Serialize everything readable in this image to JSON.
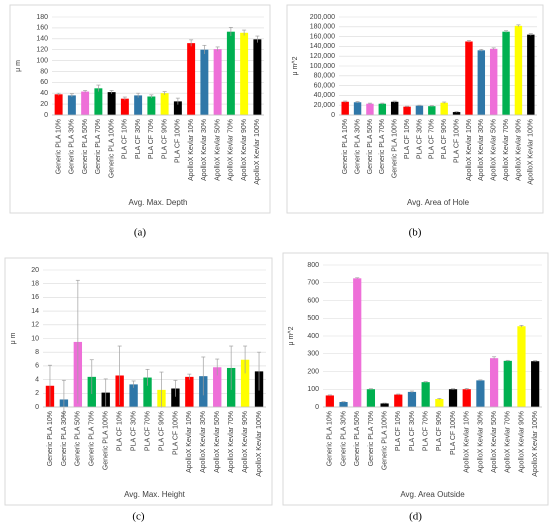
{
  "chart_data": [
    {
      "type": "bar",
      "label": "(a)",
      "title": "Avg. Max. Depth",
      "ylabel": "μ m",
      "categories": [
        "Generic PLA 10%",
        "Generic PLA 30%",
        "Generic PLA 50%",
        "Generic PLA 70%",
        "Generic PLA 100%",
        "PLA CF 10%",
        "PLA CF 30%",
        "PLA CF 70%",
        "PLA CF 90%",
        "PLA CF 100%",
        "ApolloX Kevlar 10%",
        "ApolloX Kevlar 30%",
        "ApolloX Kevlar 50%",
        "ApolloX Kevlar 70%",
        "ApolloX Kevlar 90%",
        "ApolloX Kevlar 100%"
      ],
      "values": [
        38,
        36,
        43,
        49,
        42,
        30,
        36,
        34,
        40,
        25,
        132,
        120,
        121,
        153,
        151,
        139
      ],
      "errors": [
        2,
        3,
        2,
        6,
        3,
        3,
        4,
        3,
        3,
        6,
        6,
        8,
        4,
        8,
        5,
        6
      ],
      "colors": [
        "#ff0000",
        "#2f77a8",
        "#ee6fd8",
        "#00b050",
        "#000000",
        "#ff0000",
        "#2f77a8",
        "#00b050",
        "#ffff00",
        "#000000",
        "#ff0000",
        "#2f77a8",
        "#ee6fd8",
        "#00b050",
        "#ffff00",
        "#000000"
      ],
      "ylim": [
        0,
        180
      ],
      "yticks": [
        0,
        20,
        40,
        60,
        80,
        100,
        120,
        140,
        160,
        180
      ],
      "grid": true
    },
    {
      "type": "bar",
      "label": "(b)",
      "title": "Avg. Area of Hole",
      "ylabel": "μ m^2",
      "categories": [
        "Generic PLA 10%",
        "Generic PLA 30%",
        "Generic PLA 50%",
        "Generic PLA 70%",
        "Generic PLA 100%",
        "PLA CF 10%",
        "PLA CF 30%",
        "PLA CF 70%",
        "PLA CF 90%",
        "PLA CF 100%",
        "ApolloX Kevlar 10%",
        "ApolloX Kevlar 30%",
        "ApolloX Kevlar 50%",
        "ApolloX Kevlar 70%",
        "ApolloX Kevlar 90%",
        "ApolloX Kevlar 100%"
      ],
      "values": [
        27000,
        26000,
        23000,
        23000,
        27000,
        17000,
        19000,
        18000,
        25000,
        6000,
        150000,
        132000,
        135000,
        170000,
        182000,
        164000
      ],
      "errors": [
        1500,
        1500,
        1200,
        1200,
        1500,
        1000,
        1000,
        1000,
        1500,
        800,
        2000,
        2000,
        2000,
        2000,
        2000,
        2000
      ],
      "colors": [
        "#ff0000",
        "#2f77a8",
        "#ee6fd8",
        "#00b050",
        "#000000",
        "#ff0000",
        "#2f77a8",
        "#00b050",
        "#ffff00",
        "#000000",
        "#ff0000",
        "#2f77a8",
        "#ee6fd8",
        "#00b050",
        "#ffff00",
        "#000000"
      ],
      "ylim": [
        0,
        200000
      ],
      "yticks": [
        0,
        {
          "value": 20000,
          "label": "20,000"
        },
        {
          "value": 40000,
          "label": "40,000"
        },
        {
          "value": 60000,
          "label": "60,000"
        },
        {
          "value": 80000,
          "label": "80,000"
        },
        {
          "value": 100000,
          "label": "100,000"
        },
        {
          "value": 120000,
          "label": "120,000"
        },
        {
          "value": 140000,
          "label": "140,000"
        },
        {
          "value": 160000,
          "label": "160,000"
        },
        {
          "value": 180000,
          "label": "180,000"
        },
        {
          "value": 200000,
          "label": "200,000"
        }
      ],
      "grid": true
    },
    {
      "type": "bar",
      "label": "(c)",
      "title": "Avg. Max. Height",
      "ylabel": "μ m",
      "categories": [
        "Generic PLA 10%",
        "Generic PLA 30%",
        "Generic PLA 50%",
        "Generic PLA 70%",
        "Generic PLA 100%",
        "PLA CF 10%",
        "PLA CF 30%",
        "PLA CF 70%",
        "PLA CF 90%",
        "PLA CF 100%",
        "ApolloX Kevlar 10%",
        "ApolloX Kevlar 30%",
        "ApolloX Kevlar 50%",
        "ApolloX Kevlar 70%",
        "ApolloX Kevlar 90%",
        "ApolloX Kevlar 100%"
      ],
      "values": [
        3.1,
        1.1,
        9.5,
        4.4,
        2.1,
        4.6,
        3.3,
        4.3,
        2.5,
        2.7,
        4.4,
        4.5,
        5.8,
        5.7,
        6.9,
        5.2
      ],
      "errors": [
        3,
        2.8,
        9,
        2.5,
        2,
        4.3,
        0.5,
        1.2,
        2.6,
        1.2,
        0.4,
        2.8,
        1.2,
        3.2,
        2,
        2.8
      ],
      "colors": [
        "#ff0000",
        "#2f77a8",
        "#ee6fd8",
        "#00b050",
        "#000000",
        "#ff0000",
        "#2f77a8",
        "#00b050",
        "#ffff00",
        "#000000",
        "#ff0000",
        "#2f77a8",
        "#ee6fd8",
        "#00b050",
        "#ffff00",
        "#000000"
      ],
      "ylim": [
        0,
        20
      ],
      "yticks": [
        0,
        2,
        4,
        6,
        8,
        10,
        12,
        14,
        16,
        18,
        20
      ],
      "grid": true
    },
    {
      "type": "bar",
      "label": "(d)",
      "title": "Avg. Area Outside",
      "ylabel": "μ m^2",
      "categories": [
        "Generic PLA 10%",
        "Generic PLA 30%",
        "Generic PLA 50%",
        "Generic PLA 70%",
        "Generic PLA 100%",
        "PLA CF 10%",
        "PLA CF 30%",
        "PLA CF 70%",
        "PLA CF 90%",
        "PLA CF 100%",
        "ApolloX Kevlar 10%",
        "ApolloX Kevlar 30%",
        "ApolloX Kevlar 50%",
        "ApolloX Kevlar 70%",
        "ApolloX Kevlar 90%",
        "ApolloX Kevlar 100%"
      ],
      "values": [
        65,
        28,
        725,
        100,
        20,
        70,
        85,
        140,
        45,
        100,
        100,
        150,
        275,
        260,
        455,
        258
      ],
      "errors": [
        3,
        2,
        3,
        3,
        2,
        3,
        5,
        3,
        3,
        3,
        5,
        3,
        8,
        3,
        5,
        3
      ],
      "colors": [
        "#ff0000",
        "#2f77a8",
        "#ee6fd8",
        "#00b050",
        "#000000",
        "#ff0000",
        "#2f77a8",
        "#00b050",
        "#ffff00",
        "#000000",
        "#ff0000",
        "#2f77a8",
        "#ee6fd8",
        "#00b050",
        "#ffff00",
        "#000000"
      ],
      "ylim": [
        0,
        800
      ],
      "yticks": [
        0,
        100,
        200,
        300,
        400,
        500,
        600,
        700,
        800
      ],
      "grid": true
    }
  ]
}
